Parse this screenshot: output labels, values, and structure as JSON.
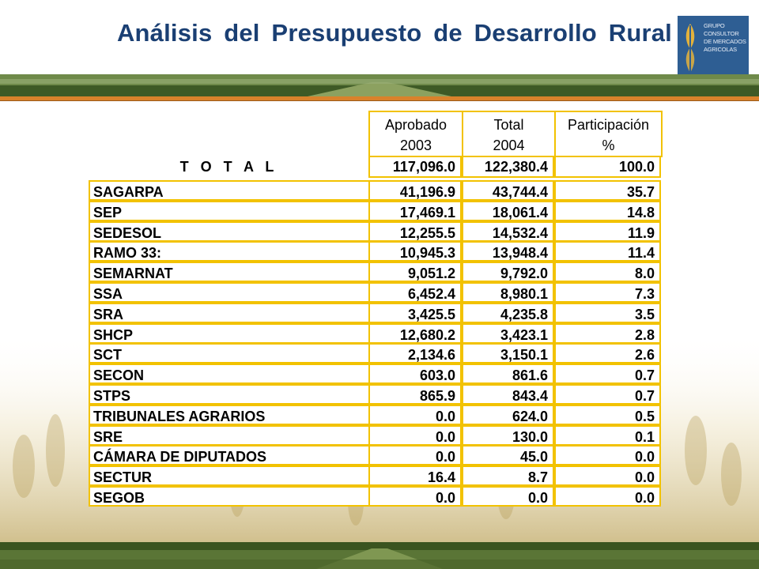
{
  "title": "Análisis del Presupuesto de Desarrollo Rural",
  "logo": {
    "lines": [
      "GRUPO",
      "CONSULTOR",
      "DE MERCADOS",
      "AGRICOLAS"
    ],
    "colors": {
      "background": "#2e5e93",
      "mark": "#e3b23c"
    }
  },
  "colors": {
    "title": "#1a3f73",
    "grid": "#f2c200",
    "rule": "#d9822b",
    "band": "#4d6b2f"
  },
  "table": {
    "headers": [
      {
        "line1": "Aprobado",
        "line2": "2003"
      },
      {
        "line1": "Total",
        "line2": "2004"
      },
      {
        "line1": "Participación",
        "line2": "%"
      }
    ],
    "total": {
      "label": "T O T A L",
      "aprobado": "117,096.0",
      "total": "122,380.4",
      "participacion": "100.0"
    },
    "rows": [
      {
        "label": "SAGARPA",
        "aprobado": "41,196.9",
        "total": "43,744.4",
        "participacion": "35.7"
      },
      {
        "label": "SEP",
        "aprobado": "17,469.1",
        "total": "18,061.4",
        "participacion": "14.8"
      },
      {
        "label": "SEDESOL",
        "aprobado": "12,255.5",
        "total": "14,532.4",
        "participacion": "11.9"
      },
      {
        "label": "RAMO 33:",
        "aprobado": "10,945.3",
        "total": "13,948.4",
        "participacion": "11.4"
      },
      {
        "label": "SEMARNAT",
        "aprobado": "9,051.2",
        "total": "9,792.0",
        "participacion": "8.0"
      },
      {
        "label": "SSA",
        "aprobado": "6,452.4",
        "total": "8,980.1",
        "participacion": "7.3"
      },
      {
        "label": "SRA",
        "aprobado": "3,425.5",
        "total": "4,235.8",
        "participacion": "3.5"
      },
      {
        "label": "SHCP",
        "aprobado": "12,680.2",
        "total": "3,423.1",
        "participacion": "2.8"
      },
      {
        "label": "SCT",
        "aprobado": "2,134.6",
        "total": "3,150.1",
        "participacion": "2.6"
      },
      {
        "label": "SECON",
        "aprobado": "603.0",
        "total": "861.6",
        "participacion": "0.7"
      },
      {
        "label": "STPS",
        "aprobado": "865.9",
        "total": "843.4",
        "participacion": "0.7"
      },
      {
        "label": "TRIBUNALES AGRARIOS",
        "aprobado": "0.0",
        "total": "624.0",
        "participacion": "0.5"
      },
      {
        "label": "SRE",
        "aprobado": "0.0",
        "total": "130.0",
        "participacion": "0.1"
      },
      {
        "label": "CÁMARA DE DIPUTADOS",
        "aprobado": "0.0",
        "total": "45.0",
        "participacion": "0.0"
      },
      {
        "label": "SECTUR",
        "aprobado": "16.4",
        "total": "8.7",
        "participacion": "0.0"
      },
      {
        "label": "SEGOB",
        "aprobado": "0.0",
        "total": "0.0",
        "participacion": "0.0"
      }
    ]
  }
}
